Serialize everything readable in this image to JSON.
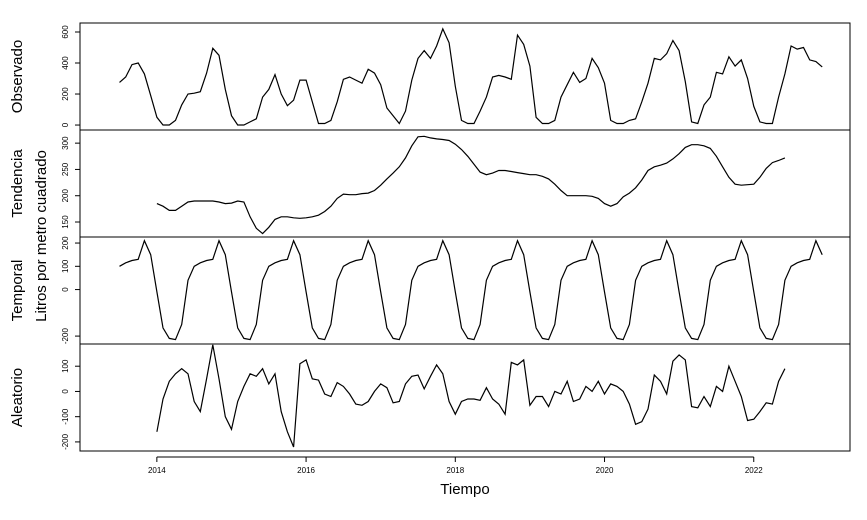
{
  "chart_data": {
    "type": "line",
    "xlabel": "Tiempo",
    "ylabel": "Litros por metro cuadrado",
    "color": "#000000",
    "xlim": [
      2012.97,
      2023.29
    ],
    "xticks": [
      2014,
      2016,
      2018,
      2020,
      2022
    ],
    "x": [
      2013.5,
      2013.583,
      2013.667,
      2013.75,
      2013.833,
      2013.917,
      2014,
      2014.083,
      2014.167,
      2014.25,
      2014.333,
      2014.417,
      2014.5,
      2014.583,
      2014.667,
      2014.75,
      2014.833,
      2014.917,
      2015,
      2015.083,
      2015.167,
      2015.25,
      2015.333,
      2015.417,
      2015.5,
      2015.583,
      2015.667,
      2015.75,
      2015.833,
      2015.917,
      2016,
      2016.083,
      2016.167,
      2016.25,
      2016.333,
      2016.417,
      2016.5,
      2016.583,
      2016.667,
      2016.75,
      2016.833,
      2016.917,
      2017,
      2017.083,
      2017.167,
      2017.25,
      2017.333,
      2017.417,
      2017.5,
      2017.583,
      2017.667,
      2017.75,
      2017.833,
      2017.917,
      2018,
      2018.083,
      2018.167,
      2018.25,
      2018.333,
      2018.417,
      2018.5,
      2018.583,
      2018.667,
      2018.75,
      2018.833,
      2018.917,
      2019,
      2019.083,
      2019.167,
      2019.25,
      2019.333,
      2019.417,
      2019.5,
      2019.583,
      2019.667,
      2019.75,
      2019.833,
      2019.917,
      2020,
      2020.083,
      2020.167,
      2020.25,
      2020.333,
      2020.417,
      2020.5,
      2020.583,
      2020.667,
      2020.75,
      2020.833,
      2020.917,
      2021,
      2021.083,
      2021.167,
      2021.25,
      2021.333,
      2021.417,
      2021.5,
      2021.583,
      2021.667,
      2021.75,
      2021.833,
      2021.917,
      2022,
      2022.083,
      2022.167,
      2022.25,
      2022.333,
      2022.417,
      2022.5,
      2022.583,
      2022.667,
      2022.75,
      2022.833,
      2022.917
    ],
    "panels": [
      {
        "name": "Observado",
        "ylim": [
          -32,
          658
        ],
        "yticks": [
          0,
          200,
          400,
          600
        ],
        "values": [
          275,
          310,
          390,
          400,
          330,
          190,
          50,
          0,
          0,
          30,
          130,
          200,
          205,
          215,
          335,
          495,
          450,
          230,
          60,
          0,
          0,
          20,
          40,
          180,
          230,
          325,
          200,
          125,
          160,
          290,
          290,
          150,
          10,
          10,
          30,
          150,
          295,
          310,
          290,
          270,
          360,
          335,
          260,
          110,
          60,
          10,
          90,
          290,
          430,
          480,
          430,
          510,
          620,
          530,
          250,
          30,
          10,
          10,
          90,
          180,
          310,
          320,
          310,
          295,
          580,
          520,
          380,
          50,
          10,
          10,
          30,
          180,
          260,
          340,
          275,
          300,
          430,
          370,
          270,
          30,
          10,
          10,
          30,
          40,
          150,
          270,
          430,
          420,
          460,
          545,
          480,
          280,
          20,
          10,
          130,
          180,
          340,
          330,
          440,
          380,
          420,
          300,
          120,
          20,
          10,
          10,
          180,
          330,
          510,
          490,
          500,
          420,
          410,
          375
        ]
      },
      {
        "name": "Tendencia",
        "ylim": [
          121.5,
          325
        ],
        "yticks": [
          150,
          200,
          250,
          300
        ],
        "values": [
          null,
          null,
          null,
          null,
          null,
          null,
          185,
          180,
          172,
          172,
          180,
          188,
          190,
          190,
          190,
          190,
          188,
          185,
          186,
          190,
          188,
          160,
          138,
          128,
          140,
          155,
          160,
          160,
          158,
          157,
          158,
          160,
          163,
          170,
          180,
          195,
          203,
          202,
          202,
          204,
          205,
          210,
          220,
          232,
          243,
          255,
          272,
          295,
          312,
          313,
          310,
          308,
          307,
          305,
          298,
          288,
          275,
          260,
          245,
          240,
          243,
          248,
          248,
          246,
          244,
          242,
          240,
          240,
          237,
          232,
          222,
          210,
          200,
          200,
          200,
          200,
          199,
          195,
          185,
          180,
          185,
          198,
          205,
          215,
          230,
          248,
          255,
          258,
          262,
          270,
          280,
          292,
          297,
          297,
          295,
          290,
          275,
          255,
          235,
          222,
          220,
          221,
          222,
          235,
          252,
          263,
          267,
          272,
          null,
          null,
          null,
          null,
          null,
          null
        ]
      },
      {
        "name": "Temporal",
        "ylim": [
          -234,
          226
        ],
        "yticks": [
          -200,
          0,
          100,
          200
        ],
        "values": [
          100,
          115,
          125,
          130,
          210,
          150,
          -10,
          -165,
          -210,
          -215,
          -150,
          40,
          100,
          115,
          125,
          130,
          210,
          150,
          -10,
          -165,
          -210,
          -215,
          -150,
          40,
          100,
          115,
          125,
          130,
          210,
          150,
          -10,
          -165,
          -210,
          -215,
          -150,
          40,
          100,
          115,
          125,
          130,
          210,
          150,
          -10,
          -165,
          -210,
          -215,
          -150,
          40,
          100,
          115,
          125,
          130,
          210,
          150,
          -10,
          -165,
          -210,
          -215,
          -150,
          40,
          100,
          115,
          125,
          130,
          210,
          150,
          -10,
          -165,
          -210,
          -215,
          -150,
          40,
          100,
          115,
          125,
          130,
          210,
          150,
          -10,
          -165,
          -210,
          -215,
          -150,
          40,
          100,
          115,
          125,
          130,
          210,
          150,
          -10,
          -165,
          -210,
          -215,
          -150,
          40,
          100,
          115,
          125,
          130,
          210,
          150,
          -10,
          -165,
          -210,
          -215,
          -150,
          40,
          100,
          115,
          125,
          130,
          210,
          150
        ]
      },
      {
        "name": "Aleatorio",
        "ylim": [
          -236,
          188
        ],
        "yticks": [
          -200,
          -100,
          0,
          100
        ],
        "values": [
          null,
          null,
          null,
          null,
          null,
          null,
          -160,
          -30,
          40,
          70,
          90,
          70,
          -40,
          -80,
          50,
          185,
          50,
          -100,
          -150,
          -40,
          20,
          70,
          60,
          90,
          30,
          70,
          -80,
          -160,
          -220,
          110,
          125,
          50,
          45,
          -10,
          -20,
          35,
          20,
          -10,
          -50,
          -55,
          -40,
          0,
          30,
          15,
          -45,
          -40,
          30,
          60,
          65,
          10,
          60,
          105,
          70,
          -40,
          -90,
          -40,
          -30,
          -30,
          -35,
          15,
          -30,
          -50,
          -90,
          115,
          105,
          125,
          -55,
          -20,
          -20,
          -60,
          0,
          -10,
          40,
          -40,
          -30,
          20,
          0,
          40,
          -10,
          30,
          20,
          0,
          -50,
          -130,
          -120,
          -70,
          65,
          40,
          -10,
          120,
          145,
          125,
          -60,
          -65,
          -20,
          -60,
          20,
          0,
          100,
          40,
          -20,
          -115,
          -110,
          -80,
          -45,
          -50,
          40,
          90,
          null,
          null,
          null,
          null,
          null,
          null
        ]
      }
    ]
  }
}
